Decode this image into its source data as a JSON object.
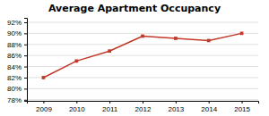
{
  "chart_data": {
    "type": "line",
    "title": "Average Apartment Occupancy",
    "x": [
      2009,
      2010,
      2011,
      2012,
      2013,
      2014,
      2015
    ],
    "values": [
      0.82,
      0.85,
      0.868,
      0.895,
      0.891,
      0.887,
      0.9
    ],
    "color": "#c0392b",
    "marker": "square",
    "xlim": [
      2008.5,
      2015.5
    ],
    "xticks": [
      2009,
      2010,
      2011,
      2012,
      2013,
      2014,
      2015
    ],
    "ylim": [
      0.778,
      0.928
    ],
    "yticks": [
      {
        "value": 0.78,
        "label": "78%"
      },
      {
        "value": 0.8,
        "label": "80%"
      },
      {
        "value": 0.82,
        "label": "82%"
      },
      {
        "value": 0.84,
        "label": "84%"
      },
      {
        "value": 0.86,
        "label": "86%"
      },
      {
        "value": 0.88,
        "label": "88%"
      },
      {
        "value": 0.9,
        "label": "90%"
      },
      {
        "value": 0.92,
        "label": "92%"
      }
    ],
    "grid": true
  }
}
